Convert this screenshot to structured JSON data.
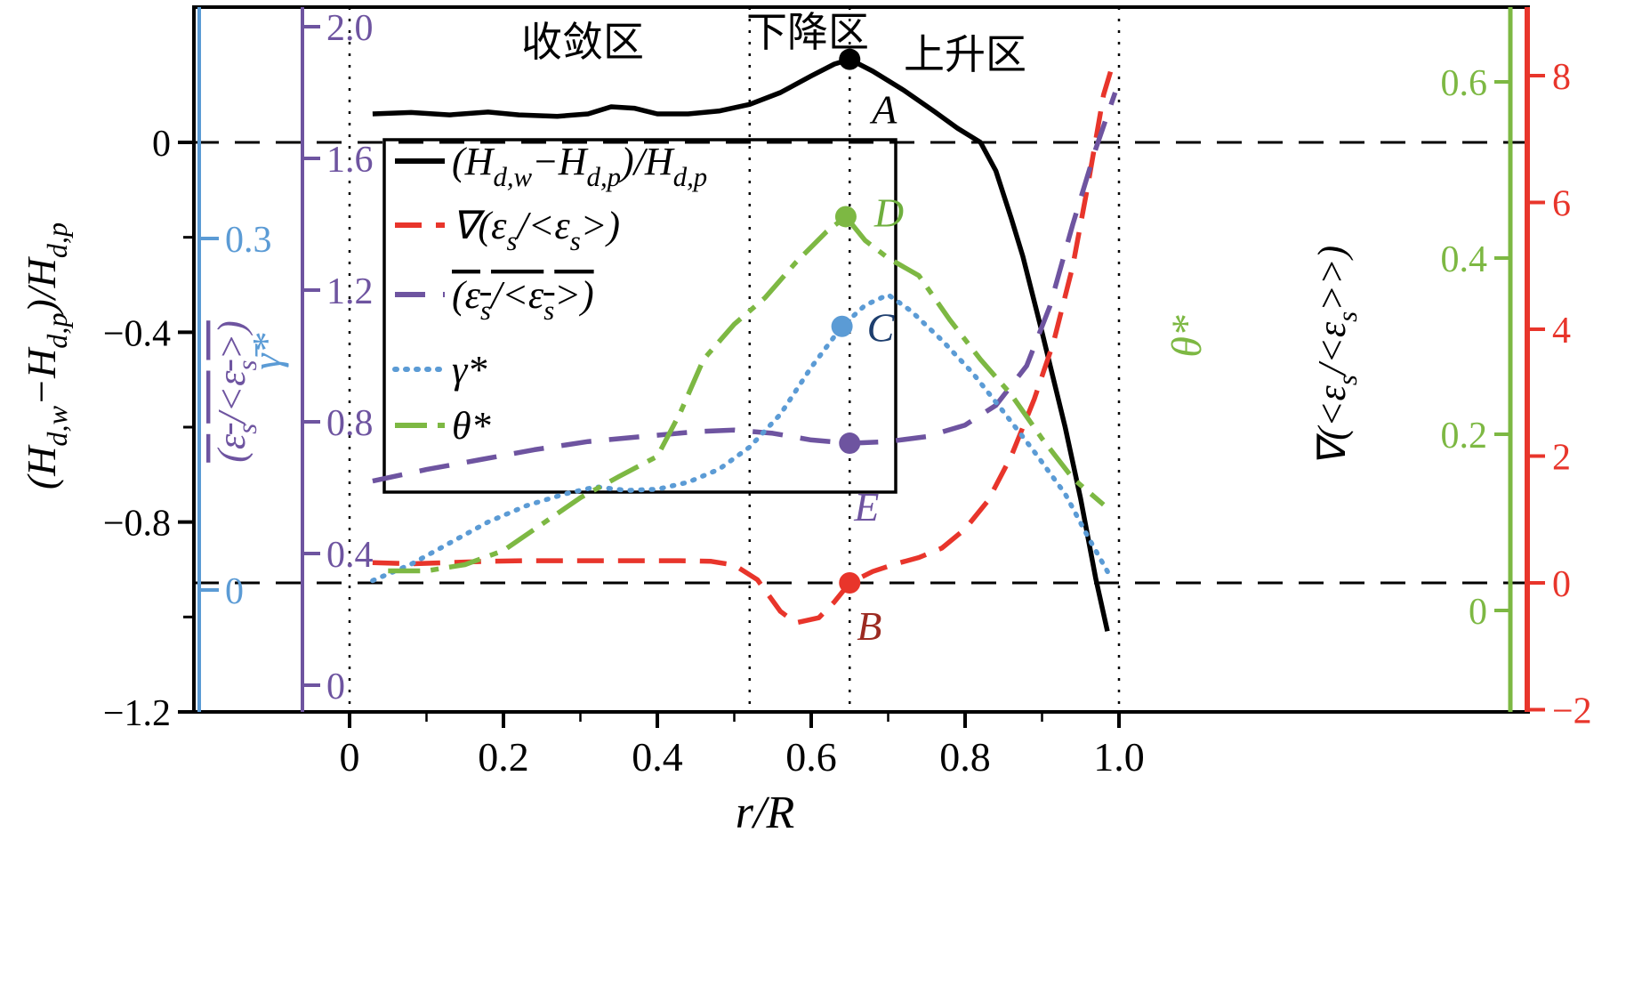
{
  "chart_data": {
    "type": "line",
    "x_axis": {
      "title": "r/R",
      "tick_labels": [
        "0",
        "0.2",
        "0.4",
        "0.6",
        "0.8",
        "1.0"
      ],
      "tick_values": [
        0,
        0.2,
        0.4,
        0.6,
        0.8,
        1.0
      ],
      "range": [
        0,
        1.0
      ]
    },
    "axes": {
      "black_left": {
        "title": "(H~d,w~−H~d,p~)/H~d,p~",
        "color": "#000000",
        "tick_labels": [
          "0",
          "−0.4",
          "−0.8",
          "−1.2"
        ],
        "tick_values": [
          0,
          -0.4,
          -0.8,
          -1.2
        ],
        "range": [
          -1.2,
          0.28
        ]
      },
      "blue_left": {
        "title": "γ̄*",
        "color": "#5b9bd5",
        "tick_labels": [
          "0.3",
          "0"
        ],
        "tick_values": [
          0.3,
          0
        ],
        "range": [
          -0.1,
          0.5
        ]
      },
      "purple_left": {
        "title": "(ε~s~/<ε~s~>)",
        "overline": true,
        "color": "#6e54a0",
        "tick_labels": [
          "2.0",
          "1.6",
          "1.2",
          "0.8",
          "0.4",
          "0"
        ],
        "tick_values": [
          2.0,
          1.6,
          1.2,
          0.8,
          0.4,
          0
        ],
        "range": [
          -0.08,
          2.06
        ]
      },
      "green_right": {
        "title": "θ*",
        "color": "#7db843",
        "tick_labels": [
          "0.6",
          "0.4",
          "0.2",
          "0"
        ],
        "tick_values": [
          0.6,
          0.4,
          0.2,
          0
        ],
        "range": [
          -0.12,
          0.68
        ]
      },
      "red_right": {
        "title": "∇(<ε~s~/<ε~s~>>)",
        "title_color": "#000000",
        "color": "#e8352b",
        "tick_labels": [
          "8",
          "6",
          "4",
          "2",
          "0",
          "−2"
        ],
        "tick_values": [
          8,
          6,
          4,
          2,
          0,
          -2
        ],
        "range": [
          -2.1,
          9.1
        ]
      }
    },
    "regions": [
      "收敛区",
      "下降区",
      "上升区"
    ],
    "reference": {
      "h_lines": [
        {
          "axis": "black_left",
          "value": 0
        },
        {
          "axis": "red_right",
          "value": 0
        }
      ],
      "v_lines": [
        0,
        0.52,
        0.65,
        1.0
      ]
    },
    "legend": [
      {
        "label": "(H~d,w~−H~d,p~)/H~d,p~",
        "overline": false
      },
      {
        "label": "∇(ε~s~/<ε~s~>)",
        "overline": false
      },
      {
        "label": "(ε~s~/<ε~s~>)",
        "overline": true
      },
      {
        "label": "γ*",
        "overline": false
      },
      {
        "label": "θ*",
        "overline": false
      }
    ],
    "series": [
      {
        "name": "(H_d,w - H_d,p)/H_d,p",
        "axis": "black_left",
        "style": "solid",
        "color": "#000000",
        "x": [
          0.03,
          0.08,
          0.13,
          0.18,
          0.22,
          0.27,
          0.31,
          0.34,
          0.37,
          0.4,
          0.44,
          0.48,
          0.52,
          0.56,
          0.6,
          0.63,
          0.65,
          0.68,
          0.72,
          0.76,
          0.79,
          0.82,
          0.84,
          0.86,
          0.875,
          0.9,
          0.93,
          0.95,
          0.97,
          0.985
        ],
        "y": [
          0.06,
          0.063,
          0.058,
          0.064,
          0.058,
          0.055,
          0.06,
          0.075,
          0.072,
          0.06,
          0.06,
          0.066,
          0.08,
          0.105,
          0.14,
          0.165,
          0.175,
          0.15,
          0.11,
          0.065,
          0.03,
          0.0,
          -0.06,
          -0.16,
          -0.24,
          -0.4,
          -0.6,
          -0.75,
          -0.92,
          -1.03
        ]
      },
      {
        "name": "grad(eps_s/<eps_s>)",
        "axis": "red_right",
        "style": "dashed",
        "color": "#e8352b",
        "x": [
          0.03,
          0.08,
          0.13,
          0.18,
          0.23,
          0.28,
          0.33,
          0.38,
          0.43,
          0.47,
          0.5,
          0.53,
          0.56,
          0.58,
          0.61,
          0.63,
          0.65,
          0.68,
          0.71,
          0.74,
          0.77,
          0.8,
          0.83,
          0.86,
          0.89,
          0.915,
          0.94,
          0.96,
          0.98,
          0.99
        ],
        "y": [
          0.32,
          0.3,
          0.32,
          0.34,
          0.35,
          0.35,
          0.35,
          0.35,
          0.35,
          0.34,
          0.28,
          0.05,
          -0.45,
          -0.63,
          -0.55,
          -0.3,
          0.0,
          0.18,
          0.3,
          0.4,
          0.55,
          0.85,
          1.3,
          2.0,
          2.9,
          3.8,
          5.0,
          6.3,
          7.7,
          8.1
        ]
      },
      {
        "name": "(eps_s/<eps_s>)",
        "axis": "purple_left",
        "style": "long-dashed",
        "color": "#6e54a0",
        "x": [
          0.03,
          0.1,
          0.17,
          0.24,
          0.31,
          0.38,
          0.45,
          0.5,
          0.55,
          0.6,
          0.65,
          0.7,
          0.75,
          0.8,
          0.84,
          0.88,
          0.91,
          0.94,
          0.97,
          0.995
        ],
        "y": [
          0.62,
          0.655,
          0.685,
          0.715,
          0.74,
          0.755,
          0.77,
          0.775,
          0.765,
          0.745,
          0.735,
          0.74,
          0.755,
          0.79,
          0.85,
          0.97,
          1.15,
          1.4,
          1.63,
          1.8
        ]
      },
      {
        "name": "gamma*",
        "axis": "blue_left",
        "style": "dotted",
        "color": "#5b9bd5",
        "x": [
          0.03,
          0.08,
          0.13,
          0.18,
          0.23,
          0.28,
          0.32,
          0.36,
          0.4,
          0.44,
          0.48,
          0.52,
          0.56,
          0.6,
          0.64,
          0.67,
          0.7,
          0.73,
          0.77,
          0.81,
          0.85,
          0.89,
          0.93,
          0.96,
          0.99
        ],
        "y": [
          0.008,
          0.022,
          0.04,
          0.058,
          0.072,
          0.082,
          0.088,
          0.085,
          0.086,
          0.092,
          0.103,
          0.122,
          0.15,
          0.19,
          0.225,
          0.243,
          0.252,
          0.238,
          0.213,
          0.185,
          0.152,
          0.118,
          0.082,
          0.045,
          0.01
        ]
      },
      {
        "name": "theta*",
        "axis": "green_right",
        "style": "dash-dot",
        "color": "#7db843",
        "x": [
          0.05,
          0.1,
          0.15,
          0.2,
          0.25,
          0.3,
          0.35,
          0.4,
          0.43,
          0.46,
          0.5,
          0.54,
          0.58,
          0.62,
          0.645,
          0.67,
          0.7,
          0.74,
          0.78,
          0.82,
          0.86,
          0.9,
          0.94,
          0.98
        ],
        "y": [
          0.045,
          0.045,
          0.052,
          0.068,
          0.098,
          0.128,
          0.152,
          0.175,
          0.225,
          0.285,
          0.325,
          0.355,
          0.395,
          0.43,
          0.447,
          0.42,
          0.4,
          0.38,
          0.33,
          0.285,
          0.245,
          0.195,
          0.15,
          0.12
        ]
      }
    ],
    "points": [
      {
        "label": "A",
        "axis": "black_left",
        "x": 0.65,
        "y": 0.175,
        "dot_color": "#000000",
        "label_color": "#000000"
      },
      {
        "label": "B",
        "axis": "red_right",
        "x": 0.65,
        "y": 0.0,
        "dot_color": "#e8352b",
        "label_color": "#9c2a21"
      },
      {
        "label": "C",
        "axis": "blue_left",
        "x": 0.64,
        "y": 0.225,
        "dot_color": "#5b9bd5",
        "label_color": "#1d3e6e"
      },
      {
        "label": "D",
        "axis": "green_right",
        "x": 0.645,
        "y": 0.447,
        "dot_color": "#7db843",
        "label_color": "#6faf3e"
      },
      {
        "label": "E",
        "axis": "purple_left",
        "x": 0.65,
        "y": 0.735,
        "dot_color": "#6e54a0",
        "label_color": "#6e54a0"
      }
    ]
  }
}
